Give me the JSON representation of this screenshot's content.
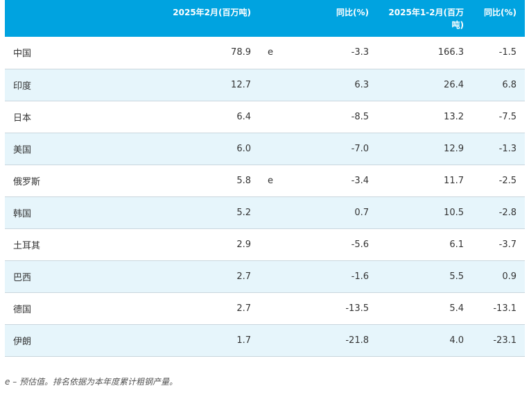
{
  "table": {
    "headers": {
      "country": "",
      "feb_2025": "2025年2月(百万吨)",
      "estimate_flag": "",
      "feb_yoy": "同比(%)",
      "janfeb_2025": "2025年1-2月(百万吨)",
      "janfeb_yoy": "同比(%)"
    },
    "rows": [
      {
        "country": "中国",
        "feb_2025": "78.9",
        "flag": "e",
        "feb_yoy": "-3.3",
        "janfeb_2025": "166.3",
        "janfeb_yoy": "-1.5"
      },
      {
        "country": "印度",
        "feb_2025": "12.7",
        "flag": "",
        "feb_yoy": "6.3",
        "janfeb_2025": "26.4",
        "janfeb_yoy": "6.8"
      },
      {
        "country": "日本",
        "feb_2025": "6.4",
        "flag": "",
        "feb_yoy": "-8.5",
        "janfeb_2025": "13.2",
        "janfeb_yoy": "-7.5"
      },
      {
        "country": "美国",
        "feb_2025": "6.0",
        "flag": "",
        "feb_yoy": "-7.0",
        "janfeb_2025": "12.9",
        "janfeb_yoy": "-1.3"
      },
      {
        "country": "俄罗斯",
        "feb_2025": "5.8",
        "flag": "e",
        "feb_yoy": "-3.4",
        "janfeb_2025": "11.7",
        "janfeb_yoy": "-2.5"
      },
      {
        "country": "韩国",
        "feb_2025": "5.2",
        "flag": "",
        "feb_yoy": "0.7",
        "janfeb_2025": "10.5",
        "janfeb_yoy": "-2.8"
      },
      {
        "country": "土耳其",
        "feb_2025": "2.9",
        "flag": "",
        "feb_yoy": "-5.6",
        "janfeb_2025": "6.1",
        "janfeb_yoy": "-3.7"
      },
      {
        "country": "巴西",
        "feb_2025": "2.7",
        "flag": "",
        "feb_yoy": "-1.6",
        "janfeb_2025": "5.5",
        "janfeb_yoy": "0.9"
      },
      {
        "country": "德国",
        "feb_2025": "2.7",
        "flag": "",
        "feb_yoy": "-13.5",
        "janfeb_2025": "5.4",
        "janfeb_yoy": "-13.1"
      },
      {
        "country": "伊朗",
        "feb_2025": "1.7",
        "flag": "",
        "feb_yoy": "-21.8",
        "janfeb_2025": "4.0",
        "janfeb_yoy": "-23.1"
      }
    ]
  },
  "footnote": "e – 预估值。排名依据为本年度累计粗钢产量。",
  "colors": {
    "header_bg": "#00a3e0",
    "header_text": "#ffffff",
    "alt_row_bg": "#e6f5fb"
  }
}
